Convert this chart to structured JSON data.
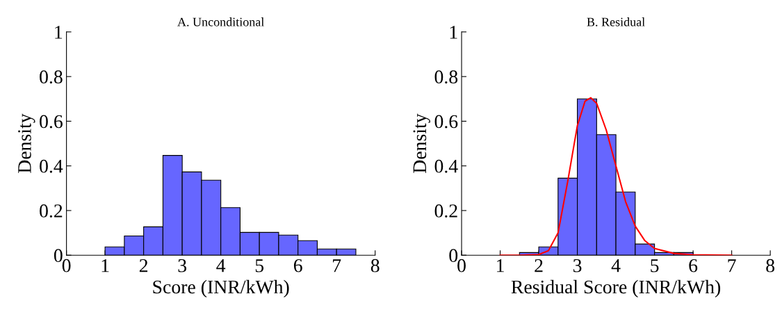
{
  "chart_data": [
    {
      "type": "histogram",
      "title": "A. Unconditional",
      "xlabel": "Score (INR/kWh)",
      "ylabel": "Density",
      "color": "#6666ff",
      "bins": [
        1,
        1.5,
        2,
        2.5,
        3,
        3.5,
        4,
        4.5,
        5,
        5.5,
        6,
        6.5,
        7,
        7.5
      ],
      "values": [
        0.037,
        0.086,
        0.127,
        0.447,
        0.373,
        0.336,
        0.213,
        0.102,
        0.102,
        0.09,
        0.065,
        0.028,
        0.028
      ],
      "xlim": [
        0,
        8
      ],
      "ylim": [
        0,
        1
      ],
      "xticks": [
        0,
        1,
        2,
        3,
        4,
        5,
        6,
        7,
        8
      ],
      "yticks": [
        0,
        0.2,
        0.4,
        0.6,
        0.8,
        1
      ],
      "grid": false
    },
    {
      "type": "histogram",
      "title": "B. Residual",
      "xlabel": "Residual Score (INR/kWh)",
      "ylabel": "Density",
      "color": "#6666ff",
      "bins": [
        1.5,
        2,
        2.5,
        3,
        3.5,
        4,
        4.5,
        5,
        5.5,
        6
      ],
      "values": [
        0.012,
        0.037,
        0.345,
        0.7,
        0.54,
        0.283,
        0.05,
        0.012,
        0.012
      ],
      "series": [
        {
          "type": "line",
          "color": "#ff0000",
          "x": [
            1,
            1.5,
            2,
            2.25,
            2.5,
            2.75,
            3,
            3.2,
            3.35,
            3.5,
            3.75,
            4,
            4.25,
            4.5,
            4.75,
            5,
            5.5,
            6,
            7
          ],
          "values": [
            0,
            0,
            0.003,
            0.02,
            0.1,
            0.33,
            0.58,
            0.69,
            0.705,
            0.68,
            0.56,
            0.4,
            0.24,
            0.13,
            0.065,
            0.03,
            0.008,
            0.002,
            0
          ]
        }
      ],
      "xlim": [
        0,
        8
      ],
      "ylim": [
        0,
        1
      ],
      "xticks": [
        0,
        1,
        2,
        3,
        4,
        5,
        6,
        7,
        8
      ],
      "yticks": [
        0,
        0.2,
        0.4,
        0.6,
        0.8,
        1
      ],
      "grid": false
    }
  ]
}
